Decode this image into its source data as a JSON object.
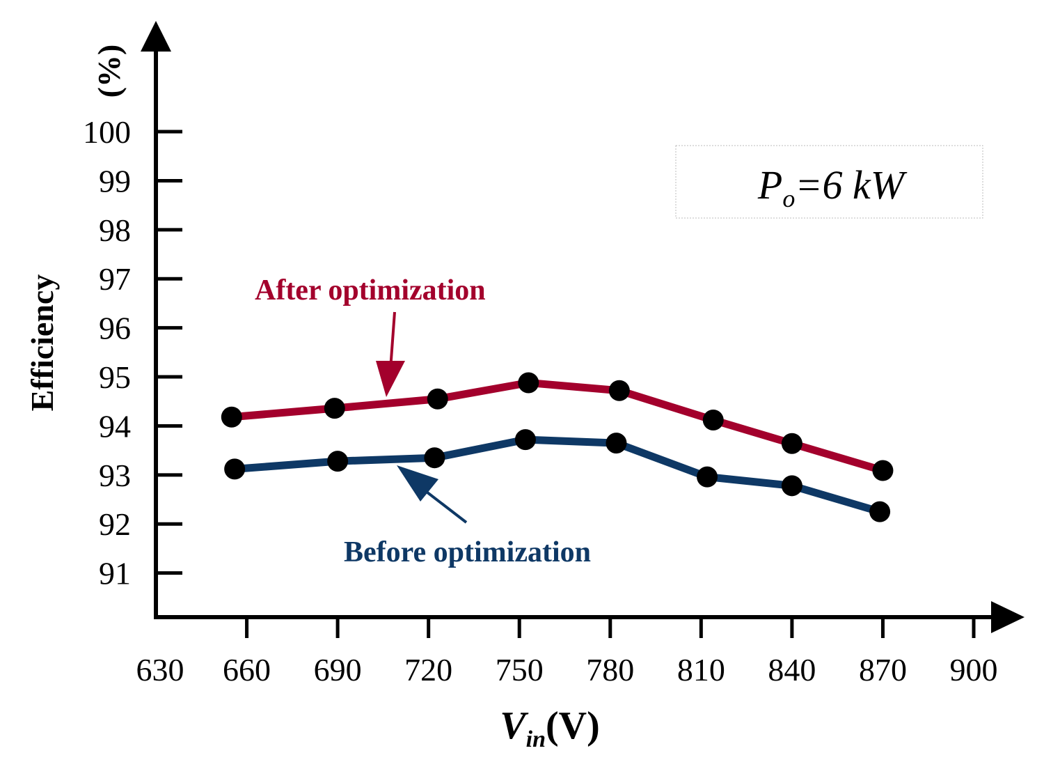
{
  "chart_data": {
    "type": "line",
    "title": "",
    "xlabel": {
      "var": "V",
      "sub": "in",
      "unit": "(V)"
    },
    "ylabel": {
      "text": "Efficiency",
      "unit": "(%)"
    },
    "xlim": [
      630,
      900
    ],
    "ylim": [
      90.1,
      101.5
    ],
    "x_ticks": [
      630,
      660,
      690,
      720,
      750,
      780,
      810,
      840,
      870,
      900
    ],
    "x_tick_labels": [
      "630",
      "660",
      "690",
      "720",
      "750",
      "780",
      "810",
      "840",
      "870",
      "900"
    ],
    "y_ticks": [
      91,
      92,
      93,
      94,
      95,
      96,
      97,
      98,
      99,
      100
    ],
    "y_tick_labels": [
      "91",
      "92",
      "93",
      "94",
      "95",
      "96",
      "97",
      "98",
      "99",
      "100"
    ],
    "grid": false,
    "series": [
      {
        "name": "After optimization",
        "color": "#a3002c",
        "x": [
          655,
          689,
          723,
          753,
          783,
          814,
          840,
          870
        ],
        "y": [
          94.18,
          94.36,
          94.55,
          94.88,
          94.72,
          94.12,
          93.64,
          93.09
        ]
      },
      {
        "name": "Before optimization",
        "color": "#0e3865",
        "x": [
          656,
          690,
          722,
          752,
          782,
          812,
          840,
          869
        ],
        "y": [
          93.12,
          93.28,
          93.35,
          93.72,
          93.65,
          92.96,
          92.78,
          92.25
        ]
      }
    ],
    "annotations": [
      {
        "text": "After optimization",
        "series": 0
      },
      {
        "text": "Before optimization",
        "series": 1
      }
    ],
    "legend_box": {
      "p": "P",
      "sub": "o",
      "rest": "=6 kW",
      "position": "top-right"
    }
  }
}
